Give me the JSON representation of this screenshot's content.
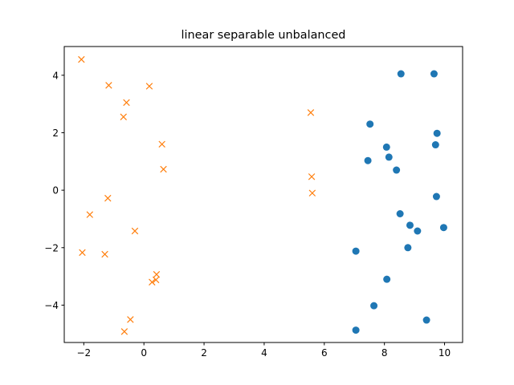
{
  "chart_data": {
    "type": "scatter",
    "title": "linear separable unbalanced",
    "xlabel": "",
    "ylabel": "",
    "xlim": [
      -2.65,
      10.6
    ],
    "ylim": [
      -5.3,
      5.0
    ],
    "xticks": [
      -2,
      0,
      2,
      4,
      6,
      8,
      10
    ],
    "yticks": [
      -4,
      -2,
      0,
      2,
      4
    ],
    "grid": false,
    "legend": "none",
    "series": [
      {
        "marker": "circle",
        "color": "#1f77b4",
        "points": [
          [
            8.55,
            4.05
          ],
          [
            9.65,
            4.05
          ],
          [
            7.52,
            2.3
          ],
          [
            9.75,
            1.98
          ],
          [
            8.07,
            1.5
          ],
          [
            9.7,
            1.58
          ],
          [
            8.15,
            1.15
          ],
          [
            7.45,
            1.03
          ],
          [
            8.4,
            0.7
          ],
          [
            9.73,
            -0.22
          ],
          [
            8.52,
            -0.82
          ],
          [
            8.85,
            -1.22
          ],
          [
            9.1,
            -1.42
          ],
          [
            9.97,
            -1.3
          ],
          [
            8.78,
            -2.0
          ],
          [
            7.05,
            -2.12
          ],
          [
            8.08,
            -3.1
          ],
          [
            7.65,
            -4.02
          ],
          [
            9.4,
            -4.52
          ],
          [
            7.05,
            -4.87
          ]
        ]
      },
      {
        "marker": "x",
        "color": "#ff7f0e",
        "points": [
          [
            -2.08,
            4.55
          ],
          [
            -1.17,
            3.65
          ],
          [
            0.18,
            3.62
          ],
          [
            -0.58,
            3.05
          ],
          [
            -0.68,
            2.55
          ],
          [
            5.55,
            2.7
          ],
          [
            0.6,
            1.6
          ],
          [
            0.65,
            0.73
          ],
          [
            5.58,
            0.47
          ],
          [
            5.6,
            -0.1
          ],
          [
            -1.2,
            -0.28
          ],
          [
            -1.8,
            -0.85
          ],
          [
            -0.3,
            -1.42
          ],
          [
            -2.05,
            -2.17
          ],
          [
            -1.3,
            -2.23
          ],
          [
            0.42,
            -2.93
          ],
          [
            0.4,
            -3.12
          ],
          [
            0.27,
            -3.2
          ],
          [
            -0.45,
            -4.5
          ],
          [
            -0.65,
            -4.92
          ]
        ]
      }
    ]
  }
}
